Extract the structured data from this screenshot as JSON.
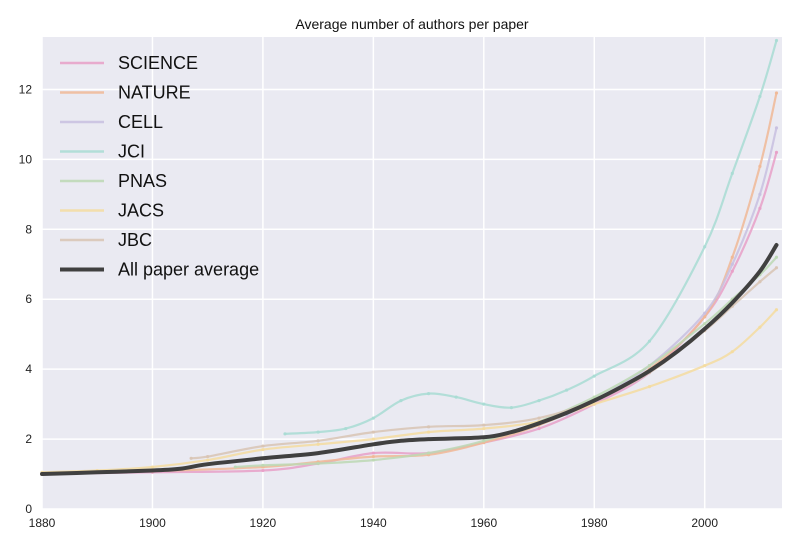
{
  "chart_data": {
    "type": "line",
    "title": "Average number of authors per paper",
    "xlabel": "",
    "ylabel": "",
    "xlim": [
      1880,
      2014
    ],
    "ylim": [
      0,
      13.5
    ],
    "xticks": [
      1880,
      1900,
      1920,
      1940,
      1960,
      1980,
      2000
    ],
    "yticks": [
      0,
      2,
      4,
      6,
      8,
      10,
      12
    ],
    "grid": true,
    "legend_position": "top-left",
    "series": [
      {
        "name": "SCIENCE",
        "color": "#e8a0c8",
        "x": [
          1880,
          1900,
          1920,
          1930,
          1940,
          1950,
          1960,
          1970,
          1980,
          1990,
          2000,
          2005,
          2010,
          2013
        ],
        "y": [
          1.0,
          1.05,
          1.1,
          1.3,
          1.6,
          1.6,
          1.9,
          2.3,
          3.0,
          3.9,
          5.5,
          6.8,
          8.6,
          10.2
        ]
      },
      {
        "name": "NATURE",
        "color": "#f0b896",
        "x": [
          1880,
          1900,
          1920,
          1930,
          1940,
          1950,
          1960,
          1970,
          1980,
          1990,
          2000,
          2005,
          2010,
          2013
        ],
        "y": [
          1.0,
          1.08,
          1.2,
          1.35,
          1.5,
          1.55,
          1.9,
          2.4,
          3.1,
          4.0,
          5.5,
          7.2,
          9.8,
          11.9
        ]
      },
      {
        "name": "CELL",
        "color": "#c8c0e0",
        "x": [
          1975,
          1980,
          1990,
          2000,
          2005,
          2010,
          2013
        ],
        "y": [
          2.7,
          3.1,
          4.1,
          5.6,
          7.0,
          9.0,
          10.9
        ]
      },
      {
        "name": "JCI",
        "color": "#a8dcd4",
        "x": [
          1924,
          1930,
          1935,
          1940,
          1945,
          1950,
          1955,
          1960,
          1965,
          1970,
          1975,
          1980,
          1990,
          2000,
          2005,
          2010,
          2013
        ],
        "y": [
          2.15,
          2.2,
          2.3,
          2.6,
          3.1,
          3.3,
          3.2,
          3.0,
          2.9,
          3.1,
          3.4,
          3.8,
          4.8,
          7.5,
          9.6,
          11.8,
          13.4
        ]
      },
      {
        "name": "PNAS",
        "color": "#bcd8b4",
        "x": [
          1915,
          1920,
          1930,
          1940,
          1950,
          1960,
          1970,
          1980,
          1990,
          2000,
          2005,
          2010,
          2013
        ],
        "y": [
          1.2,
          1.25,
          1.3,
          1.4,
          1.6,
          1.95,
          2.5,
          3.2,
          4.1,
          5.3,
          6.0,
          6.7,
          7.2
        ]
      },
      {
        "name": "JACS",
        "color": "#f4dca0",
        "x": [
          1880,
          1890,
          1900,
          1910,
          1920,
          1930,
          1940,
          1950,
          1960,
          1970,
          1980,
          1990,
          2000,
          2005,
          2010,
          2013
        ],
        "y": [
          1.05,
          1.1,
          1.2,
          1.4,
          1.7,
          1.85,
          2.0,
          2.2,
          2.3,
          2.5,
          3.0,
          3.5,
          4.1,
          4.5,
          5.2,
          5.7
        ]
      },
      {
        "name": "JBC",
        "color": "#d8c4b4",
        "x": [
          1907,
          1910,
          1920,
          1930,
          1940,
          1950,
          1960,
          1970,
          1980,
          1990,
          2000,
          2005,
          2010,
          2013
        ],
        "y": [
          1.45,
          1.5,
          1.8,
          1.95,
          2.2,
          2.35,
          2.4,
          2.6,
          3.1,
          3.9,
          5.1,
          5.8,
          6.5,
          6.9
        ]
      },
      {
        "name": "All paper average",
        "color": "#404040",
        "x": [
          1880,
          1890,
          1900,
          1905,
          1910,
          1920,
          1930,
          1940,
          1945,
          1950,
          1960,
          1965,
          1970,
          1975,
          1980,
          1985,
          1990,
          1995,
          2000,
          2005,
          2010,
          2013
        ],
        "y": [
          1.0,
          1.05,
          1.1,
          1.15,
          1.28,
          1.45,
          1.6,
          1.85,
          1.95,
          2.0,
          2.05,
          2.2,
          2.45,
          2.75,
          3.1,
          3.5,
          3.95,
          4.5,
          5.15,
          5.9,
          6.8,
          7.55
        ],
        "bold": true
      }
    ]
  }
}
